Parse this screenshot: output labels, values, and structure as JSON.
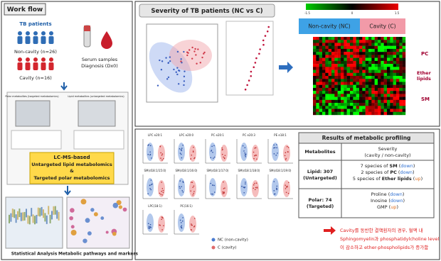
{
  "workflow": {
    "title": "Work flow",
    "group_title": "TB patients",
    "groups": [
      "Non-cavity (n=26)",
      "Cavity (n=16)"
    ],
    "sample": [
      "Serum samples",
      "Diagnosis (Dx0)"
    ],
    "platforms": [
      "Polar metabolites (targeted metabolomics)",
      "Lipid metabolites (untargeted metabolomics)"
    ],
    "method": [
      "LC-MS-based",
      "Untargeted lipid metabolomics",
      "&",
      "Targeted polar metabolomics"
    ],
    "outputs": [
      "Statistical Analysis",
      "Metabolic pathways and markers"
    ]
  },
  "severity": {
    "title": "Severity of TB patients (NC vs C)",
    "groups": [
      "Non-cavity (NC)",
      "Cavity (C)"
    ],
    "colorbar_ticks": [
      "-1.5",
      "0",
      "1.5"
    ],
    "lipid_classes": [
      [
        "PC"
      ],
      [
        "Ether",
        "lipids"
      ],
      [
        "SM"
      ]
    ]
  },
  "profiling": {
    "legend": [
      "NC (non-cavity)",
      "C (cavity)"
    ],
    "panels": [
      "LPC e20:1",
      "LPC e20:0",
      "PC e20:1",
      "PC e20:3",
      "PE e18:1",
      "SM(d18:1/15:0)",
      "SM(d18:1/16:0)",
      "SM(d18:1/17:0)",
      "SM(d18:1/18:0)",
      "SM(d18:1/19:0)",
      "LPC(18:1)",
      "PC(16:1)"
    ],
    "table": {
      "title": "Results of metabolic profiling",
      "header": [
        "Metabolites",
        "Severity",
        "(cavity / non-cavity)"
      ],
      "rows": [
        {
          "name": "Lipid: 307",
          "sub": "(Untargeted)",
          "items": [
            [
              {
                "text": "7 species of ",
                "style": ""
              },
              {
                "text": "SM",
                "style": "b"
              },
              {
                "text": " (",
                "style": ""
              },
              {
                "text": "down",
                "style": "down"
              },
              {
                "text": ")",
                "style": ""
              }
            ],
            [
              {
                "text": "2 species of ",
                "style": ""
              },
              {
                "text": "PC",
                "style": "b"
              },
              {
                "text": " (",
                "style": ""
              },
              {
                "text": "down",
                "style": "down"
              },
              {
                "text": ")",
                "style": ""
              }
            ],
            [
              {
                "text": "5 species of ",
                "style": ""
              },
              {
                "text": "Ether lipids",
                "style": "b"
              },
              {
                "text": " (",
                "style": ""
              },
              {
                "text": "up",
                "style": "up"
              },
              {
                "text": ")",
                "style": ""
              }
            ]
          ]
        },
        {
          "name": "Polar: 74",
          "sub": "(Targeted)",
          "items": [
            [
              {
                "text": "Proline (",
                "style": ""
              },
              {
                "text": "down",
                "style": "down"
              },
              {
                "text": ")",
                "style": ""
              }
            ],
            [
              {
                "text": "Inosine (",
                "style": ""
              },
              {
                "text": "down",
                "style": "down"
              },
              {
                "text": ")",
                "style": ""
              }
            ],
            [
              {
                "text": "GMP (",
                "style": ""
              },
              {
                "text": "up",
                "style": "up"
              },
              {
                "text": ")",
                "style": ""
              }
            ]
          ]
        }
      ]
    },
    "summary": [
      "Cavity를 동반한 결핵환자의 경우, 혈액 내",
      "Sphingomyelin과 phosphatidylcholine level",
      "이 감소하고 ether-phospholipids가 증가함"
    ]
  }
}
